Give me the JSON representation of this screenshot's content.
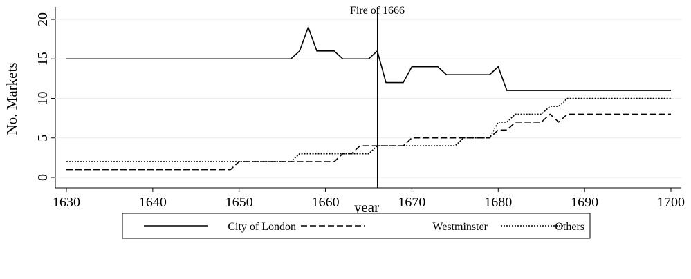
{
  "chart_data": {
    "type": "line",
    "xlabel": "year",
    "ylabel": "No. Markets",
    "annotation": {
      "text": "Fire of 1666",
      "x": 1666
    },
    "x": [
      1630,
      1631,
      1632,
      1633,
      1634,
      1635,
      1636,
      1637,
      1638,
      1639,
      1640,
      1641,
      1642,
      1643,
      1644,
      1645,
      1646,
      1647,
      1648,
      1649,
      1650,
      1651,
      1652,
      1653,
      1654,
      1655,
      1656,
      1657,
      1658,
      1659,
      1660,
      1661,
      1662,
      1663,
      1664,
      1665,
      1666,
      1667,
      1668,
      1669,
      1670,
      1671,
      1672,
      1673,
      1674,
      1675,
      1676,
      1677,
      1678,
      1679,
      1680,
      1681,
      1682,
      1683,
      1684,
      1685,
      1686,
      1687,
      1688,
      1689,
      1690,
      1691,
      1692,
      1693,
      1694,
      1695,
      1696,
      1697,
      1698,
      1699,
      1700
    ],
    "series": [
      {
        "name": "City of London",
        "color": "#000000",
        "dash": "solid",
        "values": [
          15,
          15,
          15,
          15,
          15,
          15,
          15,
          15,
          15,
          15,
          15,
          15,
          15,
          15,
          15,
          15,
          15,
          15,
          15,
          15,
          15,
          15,
          15,
          15,
          15,
          15,
          15,
          16,
          19,
          16,
          16,
          16,
          15,
          15,
          15,
          15,
          16,
          12,
          12,
          12,
          14,
          14,
          14,
          14,
          13,
          13,
          13,
          13,
          13,
          13,
          14,
          11,
          11,
          11,
          11,
          11,
          11,
          11,
          11,
          11,
          11,
          11,
          11,
          11,
          11,
          11,
          11,
          11,
          11,
          11,
          11
        ]
      },
      {
        "name": "Westminster",
        "color": "#000000",
        "dash": "dashed",
        "values": [
          1,
          1,
          1,
          1,
          1,
          1,
          1,
          1,
          1,
          1,
          1,
          1,
          1,
          1,
          1,
          1,
          1,
          1,
          1,
          1,
          2,
          2,
          2,
          2,
          2,
          2,
          2,
          2,
          2,
          2,
          2,
          2,
          3,
          3,
          4,
          4,
          4,
          4,
          4,
          4,
          5,
          5,
          5,
          5,
          5,
          5,
          5,
          5,
          5,
          5,
          6,
          6,
          7,
          7,
          7,
          7,
          8,
          7,
          8,
          8,
          8,
          8,
          8,
          8,
          8,
          8,
          8,
          8,
          8,
          8,
          8
        ]
      },
      {
        "name": "Others",
        "color": "#000000",
        "dash": "dotted",
        "values": [
          2,
          2,
          2,
          2,
          2,
          2,
          2,
          2,
          2,
          2,
          2,
          2,
          2,
          2,
          2,
          2,
          2,
          2,
          2,
          2,
          2,
          2,
          2,
          2,
          2,
          2,
          2,
          3,
          3,
          3,
          3,
          3,
          3,
          3,
          3,
          3,
          4,
          4,
          4,
          4,
          4,
          4,
          4,
          4,
          4,
          4,
          5,
          5,
          5,
          5,
          7,
          7,
          8,
          8,
          8,
          8,
          9,
          9,
          10,
          10,
          10,
          10,
          10,
          10,
          10,
          10,
          10,
          10,
          10,
          10,
          10
        ]
      }
    ],
    "xlim": [
      1630,
      1700
    ],
    "xticks": [
      1630,
      1640,
      1650,
      1660,
      1670,
      1680,
      1690,
      1700
    ],
    "ylim": [
      0,
      20
    ],
    "yticks": [
      0,
      5,
      10,
      15,
      20
    ],
    "grid": true,
    "legend": "bottom"
  }
}
